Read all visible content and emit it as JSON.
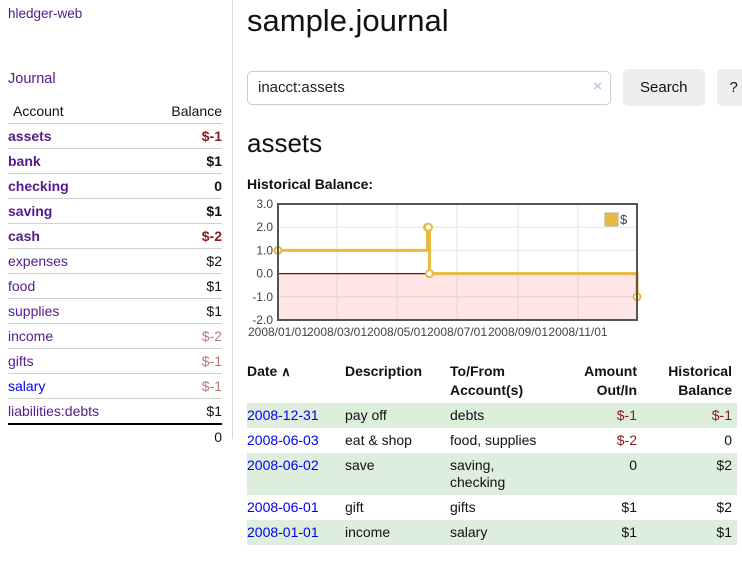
{
  "colors": {
    "link_purple": "#551A8B",
    "link_blue": "#0000EE",
    "neg_strong": "#8B1A1A",
    "neg_muted": "#B87878",
    "row_stripe_green": "#DDEEDD",
    "button_bg": "#EEEEEE"
  },
  "app": {
    "brand": "hledger-web",
    "journal_label": "Journal"
  },
  "header": {
    "title": "sample.journal"
  },
  "search": {
    "value": "inacct:assets",
    "clear_icon": "×",
    "button_label": "Search",
    "help_label": "?"
  },
  "account_page": {
    "heading": "assets",
    "chart_title": "Historical Balance:"
  },
  "sidebar_accounts": {
    "headers": [
      "Account",
      "Balance"
    ],
    "rows": [
      {
        "account": "assets",
        "balance": "$-1",
        "level": 1,
        "emphasis": true,
        "link_style": "purple"
      },
      {
        "account": "bank",
        "balance": "$1",
        "level": 2,
        "emphasis": true,
        "link_style": "purple"
      },
      {
        "account": "checking",
        "balance": "0",
        "level": 3,
        "emphasis": true,
        "link_style": "purple"
      },
      {
        "account": "saving",
        "balance": "$1",
        "level": 3,
        "emphasis": true,
        "link_style": "purple"
      },
      {
        "account": "cash",
        "balance": "$-2",
        "level": 2,
        "emphasis": true,
        "link_style": "purple"
      },
      {
        "account": "expenses",
        "balance": "$2",
        "level": 1,
        "emphasis": false,
        "link_style": "purple"
      },
      {
        "account": "food",
        "balance": "$1",
        "level": 2,
        "emphasis": false,
        "link_style": "purple"
      },
      {
        "account": "supplies",
        "balance": "$1",
        "level": 2,
        "emphasis": false,
        "link_style": "purple"
      },
      {
        "account": "income",
        "balance": "$-2",
        "level": 1,
        "emphasis": false,
        "link_style": "purple"
      },
      {
        "account": "gifts",
        "balance": "$-1",
        "level": 2,
        "emphasis": false,
        "link_style": "purple"
      },
      {
        "account": "salary",
        "balance": "$-1",
        "level": 2,
        "emphasis": false,
        "link_style": "blue"
      },
      {
        "account": "liabilities:debts",
        "balance": "$1",
        "level": 1,
        "emphasis": false,
        "link_style": "purple"
      }
    ],
    "total": "0"
  },
  "chart_data": {
    "type": "line",
    "step": true,
    "title": "Historical Balance:",
    "series": [
      {
        "name": "$",
        "color": "#E8BA3F",
        "points": [
          {
            "date": "2008-01-01",
            "day": 0,
            "value": 1
          },
          {
            "date": "2008-06-01",
            "day": 152,
            "value": 2
          },
          {
            "date": "2008-06-02",
            "day": 153,
            "value": 2
          },
          {
            "date": "2008-06-03",
            "day": 154,
            "value": 0
          },
          {
            "date": "2008-12-31",
            "day": 365,
            "value": -1
          }
        ]
      }
    ],
    "x_ticks": [
      {
        "label": "2008/01/01",
        "day": 0
      },
      {
        "label": "2008/03/01",
        "day": 60
      },
      {
        "label": "2008/05/01",
        "day": 121
      },
      {
        "label": "2008/07/01",
        "day": 182
      },
      {
        "label": "2008/09/01",
        "day": 244
      },
      {
        "label": "2008/11/01",
        "day": 305
      }
    ],
    "y_ticks": [
      {
        "value": 3,
        "label": "3.0"
      },
      {
        "value": 2,
        "label": "2.0"
      },
      {
        "value": 1,
        "label": "1.0"
      },
      {
        "value": 0,
        "label": "0.0"
      },
      {
        "value": -1,
        "label": "-1.0"
      },
      {
        "value": -2,
        "label": "-2.0"
      }
    ],
    "ylim": [
      -2,
      3
    ],
    "xlim_days": [
      0,
      365
    ],
    "grid": true,
    "legend": {
      "label": "$",
      "position": "top-right"
    },
    "line_color": "#E8BA3F",
    "marker_fill": "#FFFFFF",
    "border_color": "#545454",
    "grid_color": "#E6E6E6",
    "zero_line_color": "#8B0000",
    "negative_fill": "rgba(255,76,76,0.14)",
    "axis_label_color": "#444444"
  },
  "register": {
    "headers": {
      "date": "Date",
      "description": "Description",
      "accounts1": "To/From",
      "accounts2": "Account(s)",
      "amount1": "Amount",
      "amount2": "Out/In",
      "balance1": "Historical",
      "balance2": "Balance"
    },
    "sort_icon": "∧",
    "rows": [
      {
        "date": "2008-12-31",
        "description": "pay off",
        "accounts": "debts",
        "amount": "$-1",
        "balance": "$-1"
      },
      {
        "date": "2008-06-03",
        "description": "eat & shop",
        "accounts": "food, supplies",
        "amount": "$-2",
        "balance": "0"
      },
      {
        "date": "2008-06-02",
        "description": "save",
        "accounts": "saving, checking",
        "amount": "0",
        "balance": "$2"
      },
      {
        "date": "2008-06-01",
        "description": "gift",
        "accounts": "gifts",
        "amount": "$1",
        "balance": "$2"
      },
      {
        "date": "2008-01-01",
        "description": "income",
        "accounts": "salary",
        "amount": "$1",
        "balance": "$1"
      }
    ]
  }
}
